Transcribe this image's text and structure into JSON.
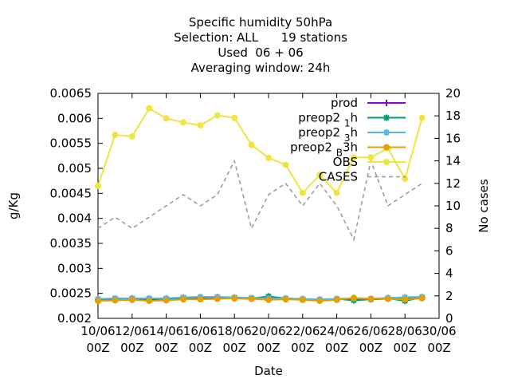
{
  "chart_data": {
    "type": "line",
    "title_lines": [
      "Specific humidity 50hPa",
      "Selection: ALL      19 stations",
      "Used  06 + 06",
      "Averaging window: 24h"
    ],
    "xlabel": "Date",
    "ylabel": "g/Kg",
    "y2label": "No cases",
    "ylim": [
      0.002,
      0.0065
    ],
    "y2lim": [
      0,
      20
    ],
    "yticks": [
      "0.002",
      "0.0025",
      "0.003",
      "0.0035",
      "0.004",
      "0.0045",
      "0.005",
      "0.0055",
      "0.006",
      "0.0065"
    ],
    "y2ticks": [
      "0",
      "2",
      "4",
      "6",
      "8",
      "10",
      "12",
      "14",
      "16",
      "18",
      "20"
    ],
    "xticks": [
      [
        "10/06",
        "00Z"
      ],
      [
        "12/06",
        "00Z"
      ],
      [
        "14/06",
        "00Z"
      ],
      [
        "16/06",
        "00Z"
      ],
      [
        "18/06",
        "00Z"
      ],
      [
        "20/06",
        "00Z"
      ],
      [
        "22/06",
        "00Z"
      ],
      [
        "24/06",
        "00Z"
      ],
      [
        "26/06",
        "00Z"
      ],
      [
        "28/06",
        "00Z"
      ],
      [
        "30/06",
        "00Z"
      ]
    ],
    "x": [
      "10/06 00Z",
      "11/06 00Z",
      "12/06 00Z",
      "13/06 00Z",
      "14/06 00Z",
      "15/06 00Z",
      "16/06 00Z",
      "17/06 00Z",
      "18/06 00Z",
      "19/06 00Z",
      "20/06 00Z",
      "21/06 00Z",
      "22/06 00Z",
      "23/06 00Z",
      "24/06 00Z",
      "25/06 00Z",
      "26/06 00Z",
      "27/06 00Z",
      "28/06 00Z",
      "29/06 00Z"
    ],
    "legend_position": "top-right",
    "series": [
      {
        "name": "prod",
        "axis": "y",
        "color": "#9400d3",
        "marker": "plus",
        "dash": "",
        "values": [
          0.00238,
          0.00239,
          0.0024,
          0.00238,
          0.00239,
          0.0024,
          0.0024,
          0.00241,
          0.0024,
          0.00239,
          0.00239,
          0.00239,
          0.00238,
          0.00237,
          0.00238,
          0.00239,
          0.00238,
          0.00239,
          0.00239,
          0.00241
        ]
      },
      {
        "name": "preop2_1h",
        "label_main": "preop2",
        "label_sub": "1",
        "label_tail": "h",
        "axis": "y",
        "color": "#009e73",
        "marker": "star",
        "dash": "",
        "values": [
          0.00236,
          0.00239,
          0.0024,
          0.00239,
          0.00239,
          0.00241,
          0.0024,
          0.00241,
          0.00241,
          0.0024,
          0.00244,
          0.0024,
          0.00238,
          0.00236,
          0.00239,
          0.00236,
          0.00238,
          0.0024,
          0.00235,
          0.00242
        ]
      },
      {
        "name": "preop2_3h",
        "label_main": "preop2",
        "label_sub": "3",
        "label_tail": "h",
        "axis": "y",
        "color": "#56b4e9",
        "marker": "star",
        "dash": "",
        "values": [
          0.00239,
          0.0024,
          0.0024,
          0.0024,
          0.0024,
          0.00242,
          0.00243,
          0.00243,
          0.00242,
          0.00241,
          0.0024,
          0.0024,
          0.00239,
          0.00238,
          0.00239,
          0.0024,
          0.00239,
          0.00241,
          0.00242,
          0.00243
        ]
      },
      {
        "name": "preop2_B_3h",
        "label_main": "preop2",
        "label_sub": "B",
        "label_tail": "3h",
        "axis": "y",
        "color": "#e69f00",
        "marker": "circle",
        "dash": "",
        "values": [
          0.00235,
          0.00236,
          0.00237,
          0.00235,
          0.00236,
          0.00238,
          0.00238,
          0.00239,
          0.0024,
          0.00239,
          0.00237,
          0.00238,
          0.00237,
          0.00235,
          0.00237,
          0.00241,
          0.00239,
          0.00239,
          0.00238,
          0.0024
        ]
      },
      {
        "name": "OBS",
        "axis": "y",
        "color": "#f0e442",
        "marker": "circle",
        "dash": "",
        "values": [
          0.00465,
          0.00567,
          0.00564,
          0.0062,
          0.006,
          0.00592,
          0.00586,
          0.00606,
          0.00601,
          0.00547,
          0.00521,
          0.00507,
          0.00451,
          0.00487,
          0.00451,
          0.00522,
          0.00522,
          0.0054,
          0.00479,
          0.00601
        ]
      },
      {
        "name": "CASES",
        "axis": "y2",
        "color": "#999999",
        "marker": "",
        "dash": "5,4",
        "values": [
          8,
          9,
          8,
          9,
          10,
          11,
          10,
          11,
          14,
          8,
          11,
          12,
          10,
          12,
          10,
          7,
          14,
          10,
          11,
          12
        ]
      }
    ]
  }
}
